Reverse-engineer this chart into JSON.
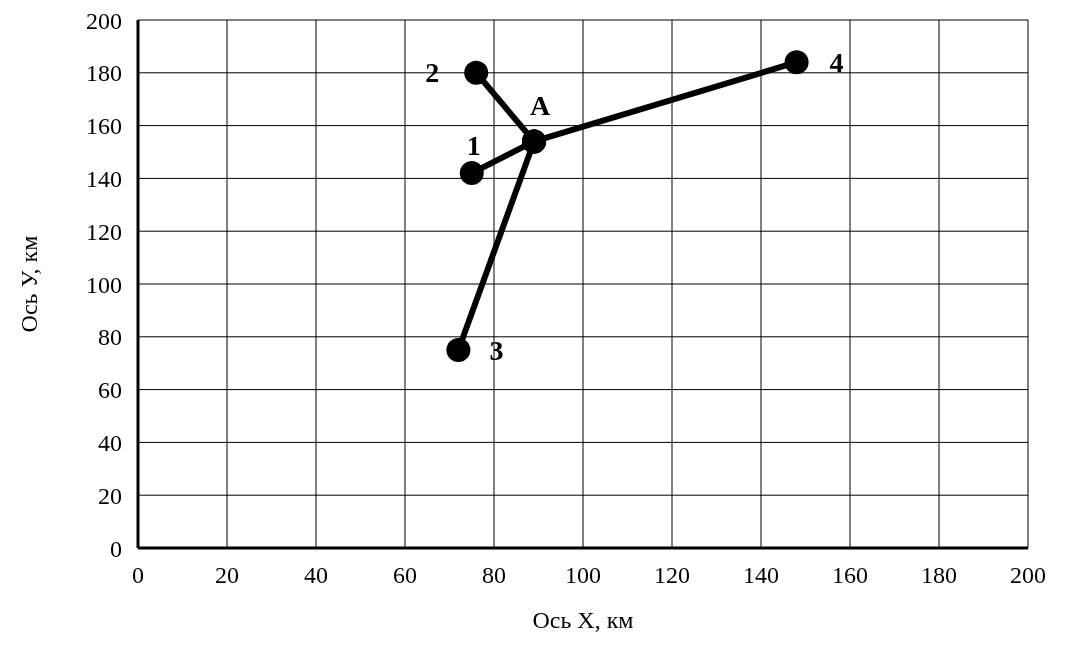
{
  "chart_data": {
    "type": "scatter",
    "xlabel": "Ось X, км",
    "ylabel": "Ось У, км",
    "xlim": [
      0,
      200
    ],
    "ylim": [
      0,
      200
    ],
    "xticks": [
      0,
      20,
      40,
      60,
      80,
      100,
      120,
      140,
      160,
      180,
      200
    ],
    "yticks": [
      0,
      20,
      40,
      60,
      80,
      100,
      120,
      140,
      160,
      180,
      200
    ],
    "grid": true,
    "legend": false,
    "marker": "circle",
    "line_style": "solid",
    "series": [
      {
        "type": "line",
        "color": "#000000",
        "x": [
          89,
          75
        ],
        "values": [
          154,
          142
        ]
      },
      {
        "type": "line",
        "color": "#000000",
        "x": [
          89,
          76
        ],
        "values": [
          154,
          180
        ]
      },
      {
        "type": "line",
        "color": "#000000",
        "x": [
          89,
          72
        ],
        "values": [
          154,
          75
        ]
      },
      {
        "type": "line",
        "color": "#000000",
        "x": [
          89,
          148
        ],
        "values": [
          154,
          184
        ]
      }
    ],
    "annotations": [
      {
        "text": "1",
        "x": 75,
        "y": 142
      },
      {
        "text": "2",
        "x": 76,
        "y": 180
      },
      {
        "text": "3",
        "x": 72,
        "y": 75
      },
      {
        "text": "4",
        "x": 148,
        "y": 184
      },
      {
        "text": "A",
        "x": 89,
        "y": 154
      }
    ]
  }
}
